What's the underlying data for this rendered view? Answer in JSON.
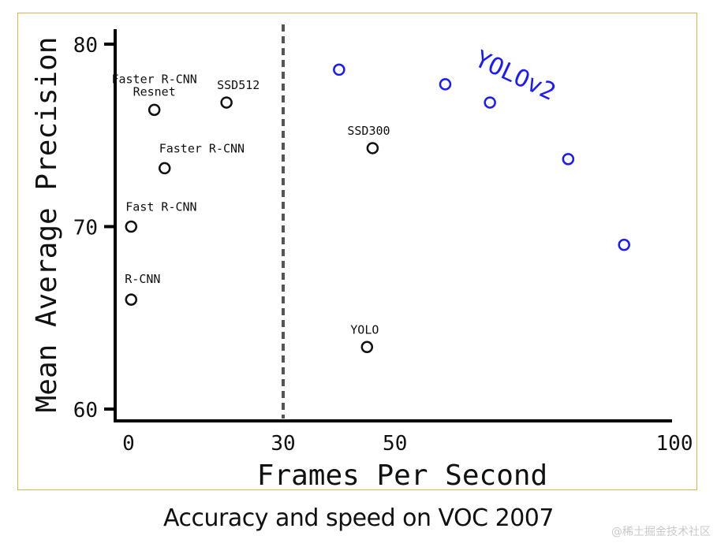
{
  "caption": "Accuracy and speed on VOC 2007",
  "watermark": "@稀土掘金技术社区",
  "chart_data": {
    "type": "scatter",
    "title": "",
    "xlabel": "Frames Per Second",
    "ylabel": "Mean Average Precision",
    "x_ticks": [
      {
        "value": 0,
        "label": "0"
      },
      {
        "value": 30,
        "label": "30"
      },
      {
        "value": 50,
        "label": "50"
      },
      {
        "value": 100,
        "label": "100"
      }
    ],
    "y_ticks": [
      {
        "value": 60,
        "label": "60"
      },
      {
        "value": 70,
        "label": "70"
      },
      {
        "value": 80,
        "label": "80"
      }
    ],
    "ylim": [
      59.5,
      80.8
    ],
    "realtime_threshold_fps": 30,
    "series": [
      {
        "color": "#111111",
        "points": [
          {
            "x": 0.5,
            "y": 66.0,
            "label": "R-CNN"
          },
          {
            "x": 0.5,
            "y": 70.0,
            "label": "Fast R-CNN"
          },
          {
            "x": 7,
            "y": 73.2,
            "label": "Faster R-CNN"
          },
          {
            "x": 5,
            "y": 76.4,
            "label": "Faster R-CNN\nResnet"
          },
          {
            "x": 19,
            "y": 76.8,
            "label": "SSD512"
          },
          {
            "x": 46,
            "y": 74.3,
            "label": "SSD300"
          },
          {
            "x": 45,
            "y": 63.4,
            "label": "YOLO"
          }
        ]
      },
      {
        "name": "YOLOv2",
        "color": "#1a1aff",
        "points": [
          {
            "x": 40,
            "y": 78.6
          },
          {
            "x": 59,
            "y": 77.8
          },
          {
            "x": 67,
            "y": 76.8
          },
          {
            "x": 81,
            "y": 73.7
          },
          {
            "x": 91,
            "y": 69.0
          }
        ]
      }
    ]
  }
}
